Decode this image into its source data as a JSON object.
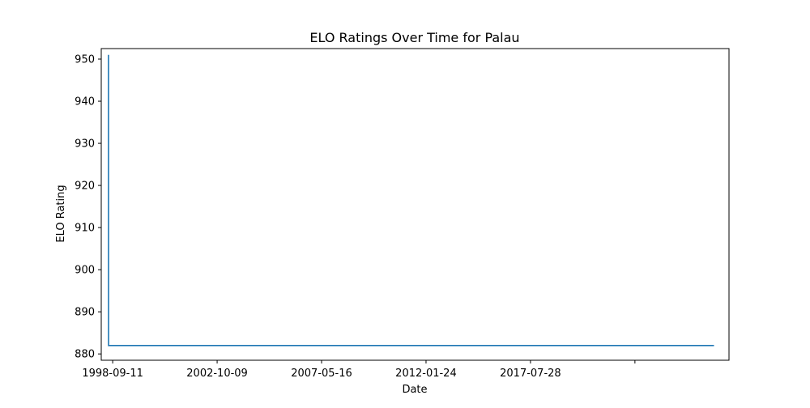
{
  "chart_data": {
    "type": "line",
    "title": "ELO Ratings Over Time for Palau",
    "xlabel": "Date",
    "ylabel": "ELO Rating",
    "x_ticks": [
      "1998-09-11",
      "2002-10-09",
      "2007-05-16",
      "2012-01-24",
      "2017-07-28",
      ""
    ],
    "y_ticks": [
      880,
      890,
      900,
      910,
      920,
      930,
      940,
      950
    ],
    "ylim": [
      878.5,
      952.5
    ],
    "xlim": [
      "1998-04-01",
      "2022-10-01"
    ],
    "grid": false,
    "legend": "none",
    "series": [
      {
        "color": "#1f77b4",
        "points": [
          {
            "x": "1998-07-13",
            "y": 951
          },
          {
            "x": "1998-07-14",
            "y": 882
          },
          {
            "x": "2022-03-01",
            "y": 882
          }
        ]
      }
    ]
  }
}
